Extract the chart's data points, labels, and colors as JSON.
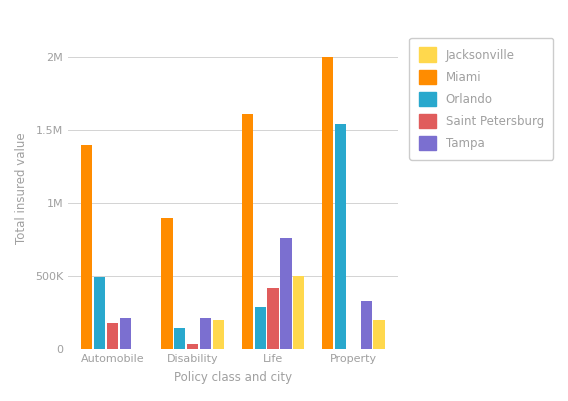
{
  "categories": [
    "Automobile",
    "Disability",
    "Life",
    "Property"
  ],
  "cities": [
    "Miami",
    "Orlando",
    "Saint Petersburg",
    "Tampa",
    "Jacksonville"
  ],
  "colors": {
    "Jacksonville": "#FFD84D",
    "Miami": "#FF8C00",
    "Orlando": "#29A8CD",
    "Saint Petersburg": "#E05C5C",
    "Tampa": "#7B6FD0"
  },
  "values": {
    "Miami": [
      1400000,
      900000,
      1610000,
      2000000
    ],
    "Orlando": [
      490000,
      140000,
      290000,
      1540000
    ],
    "Saint Petersburg": [
      175000,
      30000,
      420000,
      0
    ],
    "Tampa": [
      210000,
      210000,
      760000,
      330000
    ],
    "Jacksonville": [
      0,
      195000,
      500000,
      200000
    ]
  },
  "ylabel": "Total insured value",
  "xlabel": "Policy class and city",
  "ylim": [
    0,
    2200000
  ],
  "yticks": [
    0,
    500000,
    1000000,
    1500000,
    2000000
  ],
  "ytick_labels": [
    "0",
    "500K",
    "1M",
    "1.5M",
    "2M"
  ],
  "legend_cities": [
    "Jacksonville",
    "Miami",
    "Orlando",
    "Saint Petersburg",
    "Tampa"
  ],
  "background_color": "#FFFFFF",
  "grid_color": "#D3D3D3",
  "axis_label_color": "#A0A0A0",
  "tick_label_color": "#A0A0A0"
}
